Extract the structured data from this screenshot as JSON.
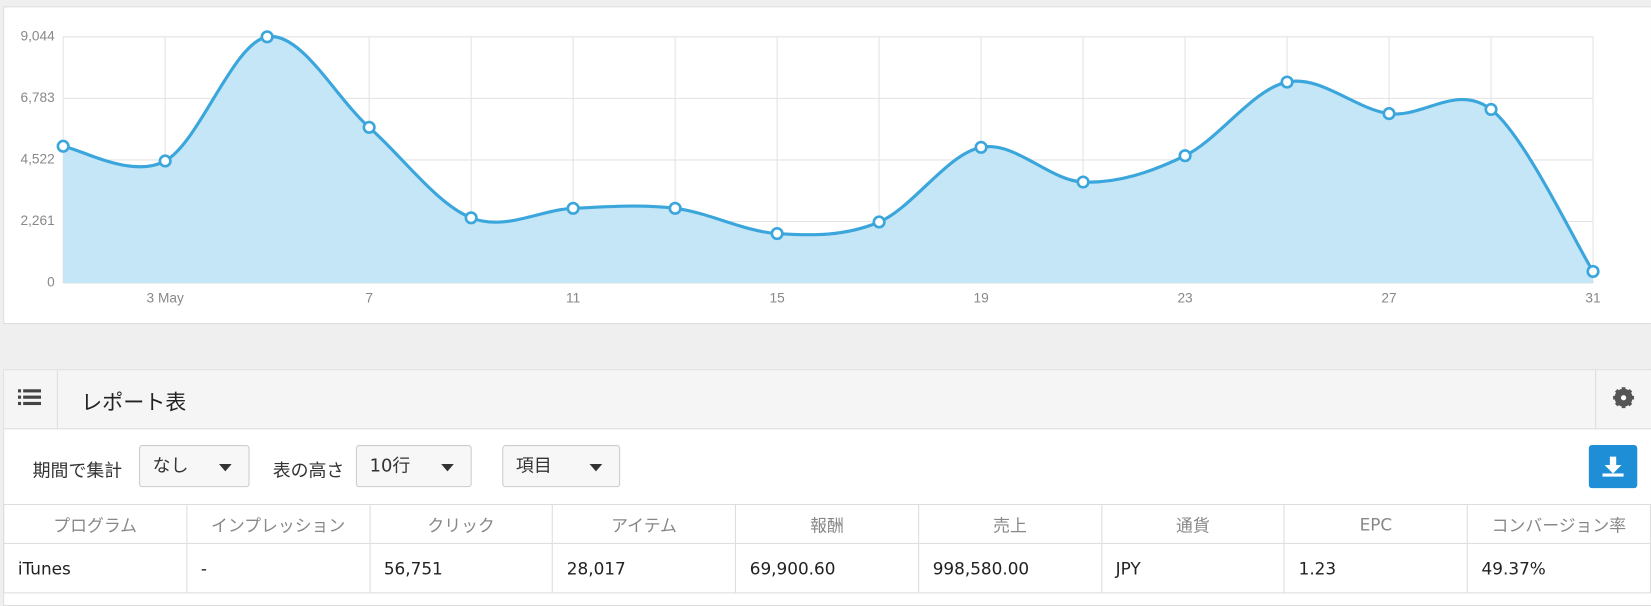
{
  "chart_data": {
    "type": "area-spline",
    "color": "#3ba6dc",
    "fill": "#c2e5f5",
    "grid": true,
    "x": [
      1,
      3,
      5,
      7,
      9,
      11,
      13,
      15,
      17,
      19,
      21,
      23,
      25,
      27,
      29,
      31
    ],
    "values": [
      5024,
      4483,
      9044,
      5720,
      2396,
      2744,
      2744,
      1817,
      2242,
      4986,
      3710,
      4677,
      7382,
      6223,
      6377,
      425
    ],
    "xlim": [
      1,
      31
    ],
    "xticks": [
      {
        "value": 3,
        "label": "3 May"
      },
      7,
      11,
      15,
      19,
      23,
      27,
      31
    ],
    "ylim": [
      0,
      9044
    ],
    "yticks": [
      0,
      {
        "value": 2261,
        "label": "2,261"
      },
      {
        "value": 4522,
        "label": "4,522"
      },
      {
        "value": 6783,
        "label": "6,783"
      },
      {
        "value": 9044,
        "label": "9,044"
      }
    ]
  },
  "report": {
    "title": "レポート表",
    "filters": {
      "period_label": "期間で集計",
      "period_value": "なし",
      "height_label": "表の高さ",
      "height_value": "10行",
      "columns_select": "項目"
    },
    "table": {
      "columns": [
        "プログラム",
        "インプレッション",
        "クリック",
        "アイテム",
        "報酬",
        "売上",
        "通貨",
        "EPC",
        "コンバージョン率"
      ],
      "rows": [
        [
          "iTunes",
          "-",
          "56,751",
          "28,017",
          "69,900.60",
          "998,580.00",
          "JPY",
          "1.23",
          "49.37%"
        ]
      ]
    }
  }
}
